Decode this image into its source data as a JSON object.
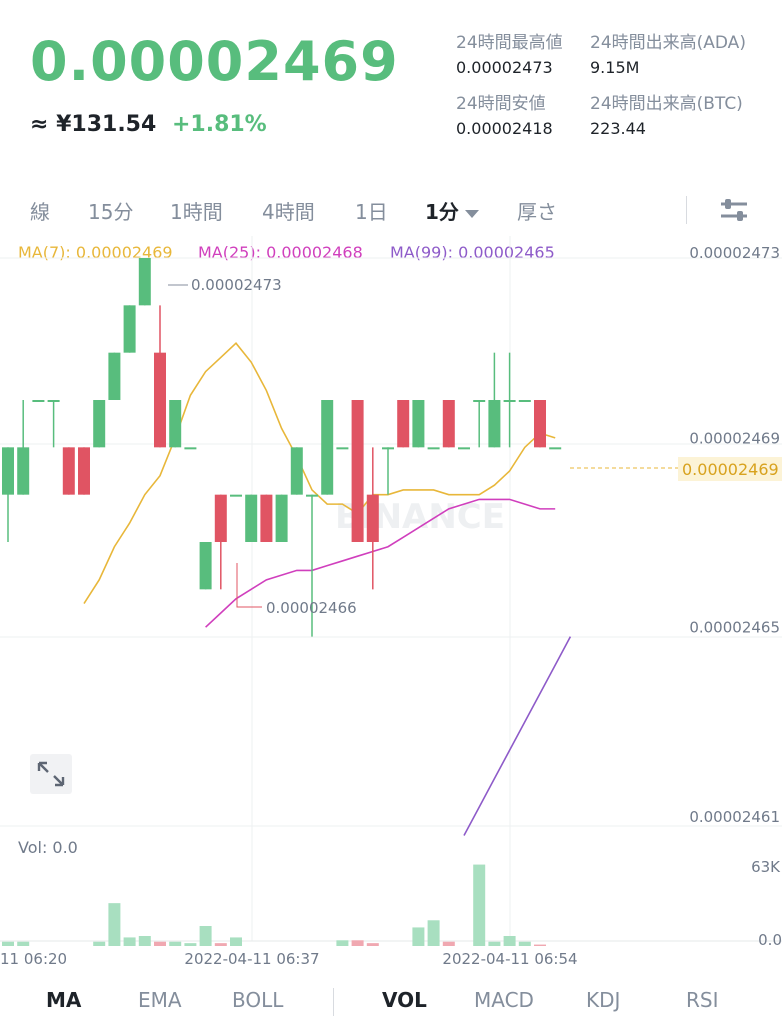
{
  "header": {
    "last_price": "0.00002469",
    "fiat_approx": "≈ ¥131.54",
    "change_pct": "+1.81%",
    "stats": {
      "high_label": "24時間最高値",
      "high_value": "0.00002473",
      "vol_base_label": "24時間出来高(ADA)",
      "vol_base_value": "9.15M",
      "low_label": "24時間安値",
      "low_value": "0.00002418",
      "vol_quote_label": "24時間出来高(BTC)",
      "vol_quote_value": "223.44"
    }
  },
  "interval_tabs": [
    "線",
    "15分",
    "1時間",
    "4時間",
    "1日",
    "1分",
    "厚さ"
  ],
  "active_interval": "1分",
  "ma_legend": {
    "ma7": "MA(7): 0.00002469",
    "ma25": "MA(25): 0.00002468",
    "ma99": "MA(99): 0.00002465"
  },
  "price_axis": [
    "0.00002473",
    "0.00002469",
    "0.00002465",
    "0.00002461"
  ],
  "current_price_tag": "0.00002469",
  "annotations": {
    "high": "0.00002473",
    "low": "0.00002466"
  },
  "watermark": "BINANCE",
  "volume": {
    "label": "Vol: 0.0",
    "axis_top": "63K",
    "axis_bottom": "0.0"
  },
  "time_axis": [
    "11 06:20",
    "2022-04-11 06:37",
    "2022-04-11 06:54"
  ],
  "bottom_tabs": {
    "main": [
      "MA",
      "EMA",
      "BOLL"
    ],
    "sub": [
      "VOL",
      "MACD",
      "KDJ",
      "RSI"
    ]
  },
  "colors": {
    "up": "#58bd7d",
    "down": "#e05463",
    "ma7": "#e8b73a",
    "ma25": "#d03fbd",
    "ma99": "#8e5bc9"
  },
  "chart_data": {
    "type": "candlestick",
    "price_range": [
      2.461e-05,
      2.473e-05
    ],
    "candles": [
      {
        "o": 2.468e-05,
        "c": 2.469e-05,
        "h": 2.469e-05,
        "l": 2.467e-05
      },
      {
        "o": 2.468e-05,
        "c": 2.469e-05,
        "h": 2.47e-05,
        "l": 2.468e-05
      },
      {
        "o": 2.47e-05,
        "c": 2.47e-05,
        "h": 2.47e-05,
        "l": 2.47e-05
      },
      {
        "o": 2.47e-05,
        "c": 2.47e-05,
        "h": 2.47e-05,
        "l": 2.469e-05
      },
      {
        "o": 2.469e-05,
        "c": 2.468e-05,
        "h": 2.469e-05,
        "l": 2.468e-05
      },
      {
        "o": 2.469e-05,
        "c": 2.468e-05,
        "h": 2.469e-05,
        "l": 2.468e-05
      },
      {
        "o": 2.469e-05,
        "c": 2.47e-05,
        "h": 2.47e-05,
        "l": 2.469e-05
      },
      {
        "o": 2.47e-05,
        "c": 2.471e-05,
        "h": 2.471e-05,
        "l": 2.47e-05
      },
      {
        "o": 2.471e-05,
        "c": 2.472e-05,
        "h": 2.472e-05,
        "l": 2.471e-05
      },
      {
        "o": 2.472e-05,
        "c": 2.473e-05,
        "h": 2.473e-05,
        "l": 2.472e-05
      },
      {
        "o": 2.471e-05,
        "c": 2.469e-05,
        "h": 2.472e-05,
        "l": 2.469e-05
      },
      {
        "o": 2.469e-05,
        "c": 2.47e-05,
        "h": 2.47e-05,
        "l": 2.469e-05
      },
      {
        "o": 2.469e-05,
        "c": 2.469e-05,
        "h": 2.469e-05,
        "l": 2.469e-05
      },
      {
        "o": 2.466e-05,
        "c": 2.467e-05,
        "h": 2.467e-05,
        "l": 2.466e-05
      },
      {
        "o": 2.468e-05,
        "c": 2.467e-05,
        "h": 2.468e-05,
        "l": 2.466e-05
      },
      {
        "o": 2.468e-05,
        "c": 2.468e-05,
        "h": 2.468e-05,
        "l": 2.468e-05
      },
      {
        "o": 2.467e-05,
        "c": 2.468e-05,
        "h": 2.468e-05,
        "l": 2.467e-05
      },
      {
        "o": 2.468e-05,
        "c": 2.467e-05,
        "h": 2.468e-05,
        "l": 2.467e-05
      },
      {
        "o": 2.467e-05,
        "c": 2.468e-05,
        "h": 2.468e-05,
        "l": 2.467e-05
      },
      {
        "o": 2.468e-05,
        "c": 2.469e-05,
        "h": 2.469e-05,
        "l": 2.468e-05
      },
      {
        "o": 2.468e-05,
        "c": 2.468e-05,
        "h": 2.468e-05,
        "l": 2.465e-05
      },
      {
        "o": 2.468e-05,
        "c": 2.47e-05,
        "h": 2.47e-05,
        "l": 2.468e-05
      },
      {
        "o": 2.469e-05,
        "c": 2.469e-05,
        "h": 2.469e-05,
        "l": 2.469e-05
      },
      {
        "o": 2.47e-05,
        "c": 2.467e-05,
        "h": 2.47e-05,
        "l": 2.467e-05
      },
      {
        "o": 2.468e-05,
        "c": 2.467e-05,
        "h": 2.469e-05,
        "l": 2.466e-05
      },
      {
        "o": 2.469e-05,
        "c": 2.469e-05,
        "h": 2.469e-05,
        "l": 2.468e-05
      },
      {
        "o": 2.47e-05,
        "c": 2.469e-05,
        "h": 2.47e-05,
        "l": 2.469e-05
      },
      {
        "o": 2.469e-05,
        "c": 2.47e-05,
        "h": 2.47e-05,
        "l": 2.469e-05
      },
      {
        "o": 2.469e-05,
        "c": 2.469e-05,
        "h": 2.469e-05,
        "l": 2.469e-05
      },
      {
        "o": 2.47e-05,
        "c": 2.469e-05,
        "h": 2.47e-05,
        "l": 2.469e-05
      },
      {
        "o": 2.469e-05,
        "c": 2.469e-05,
        "h": 2.469e-05,
        "l": 2.469e-05
      },
      {
        "o": 2.47e-05,
        "c": 2.47e-05,
        "h": 2.47e-05,
        "l": 2.469e-05
      },
      {
        "o": 2.469e-05,
        "c": 2.47e-05,
        "h": 2.471e-05,
        "l": 2.469e-05
      },
      {
        "o": 2.47e-05,
        "c": 2.47e-05,
        "h": 2.471e-05,
        "l": 2.469e-05
      },
      {
        "o": 2.47e-05,
        "c": 2.47e-05,
        "h": 2.47e-05,
        "l": 2.47e-05
      },
      {
        "o": 2.47e-05,
        "c": 2.469e-05,
        "h": 2.47e-05,
        "l": 2.469e-05
      },
      {
        "o": 2.469e-05,
        "c": 2.469e-05,
        "h": 2.469e-05,
        "l": 2.469e-05
      }
    ],
    "ma7": [
      2.4657e-05,
      2.4662e-05,
      2.4669e-05,
      2.4674e-05,
      2.468e-05,
      2.4684e-05,
      2.4692e-05,
      2.4701e-05,
      2.4706e-05,
      2.4709e-05,
      2.4712e-05,
      2.4708e-05,
      2.4702e-05,
      2.4694e-05,
      2.4688e-05,
      2.4681e-05,
      2.4678e-05,
      2.4678e-05,
      2.4676e-05,
      2.468e-05,
      2.468e-05,
      2.4681e-05,
      2.4681e-05,
      2.4681e-05,
      2.468e-05,
      2.468e-05,
      2.468e-05,
      2.4682e-05,
      2.4685e-05,
      2.469e-05,
      2.4693e-05,
      2.4692e-05
    ],
    "ma25": [
      2.4652e-05,
      2.4655e-05,
      2.4658e-05,
      2.466e-05,
      2.4662e-05,
      2.4663e-05,
      2.4664e-05,
      2.4664e-05,
      2.4665e-05,
      2.4666e-05,
      2.4667e-05,
      2.4668e-05,
      2.4669e-05,
      2.4671e-05,
      2.4673e-05,
      2.4675e-05,
      2.4677e-05,
      2.4678e-05,
      2.4679e-05,
      2.4679e-05,
      2.4679e-05,
      2.4678e-05,
      2.4677e-05,
      2.4677e-05
    ],
    "ma99": [
      2.4608e-05,
      2.4614e-05,
      2.462e-05,
      2.4626e-05,
      2.4632e-05,
      2.4638e-05,
      2.4644e-05,
      2.465e-05
    ],
    "volume_max": 63000,
    "volumes": [
      3000,
      3000,
      0,
      0,
      0,
      0,
      3000,
      30000,
      6000,
      7000,
      3000,
      3000,
      2000,
      14000,
      2000,
      6000,
      0,
      0,
      0,
      0,
      0,
      0,
      4000,
      4000,
      2000,
      0,
      0,
      13000,
      18000,
      3000,
      0,
      57000,
      3000,
      7000,
      3000,
      1000,
      0
    ]
  }
}
